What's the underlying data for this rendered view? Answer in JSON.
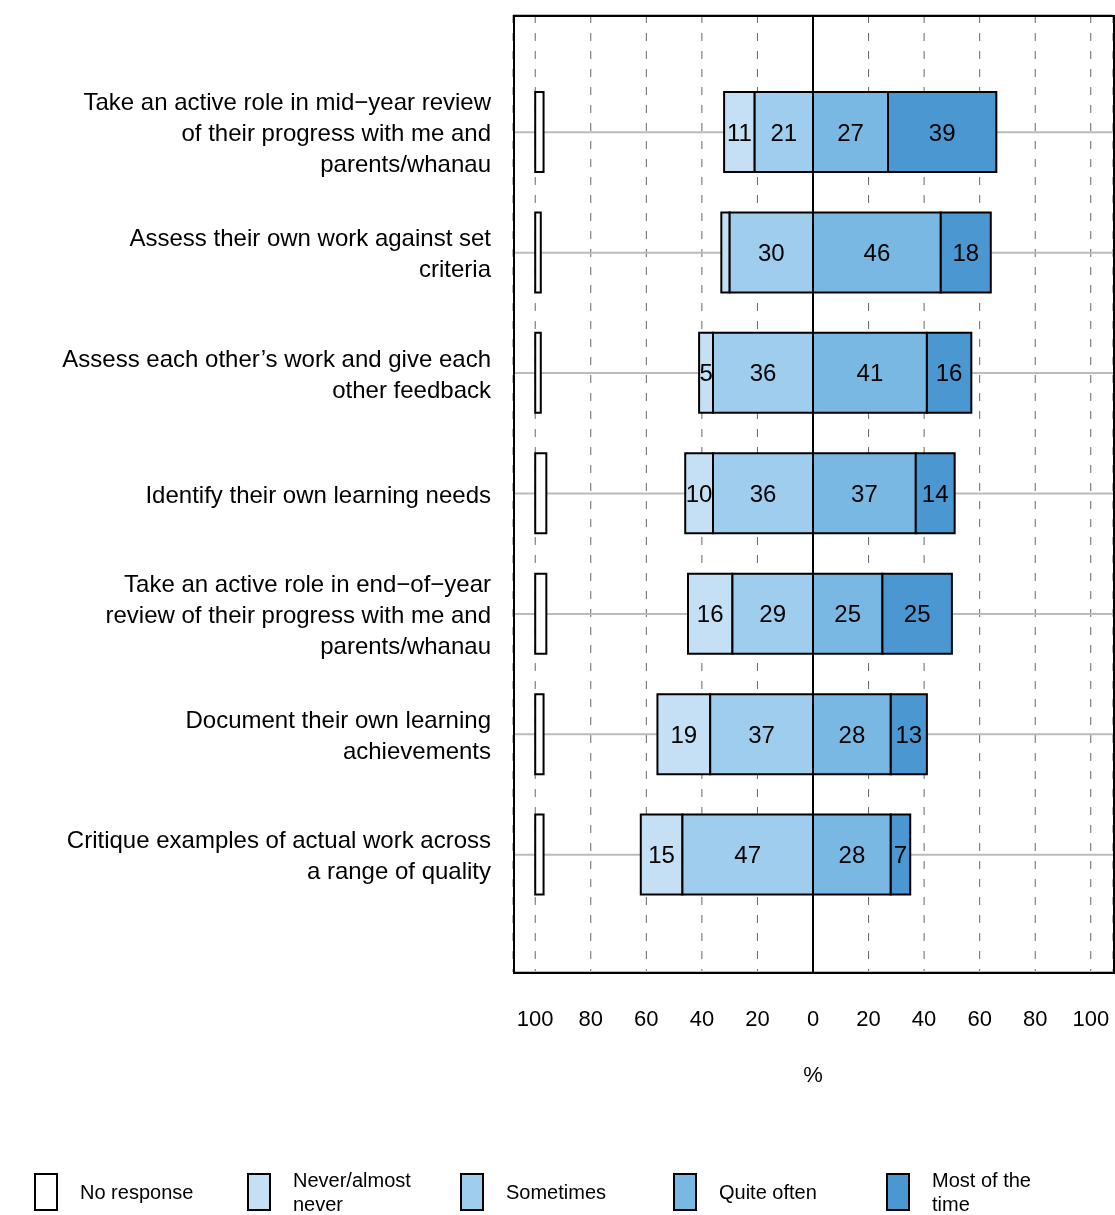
{
  "chart_data": {
    "type": "bar",
    "orientation": "horizontal",
    "xlabel": "%",
    "categories": [
      "Take an active role in mid−year review of their progress with me and parents/whanau",
      "Assess their own work against set criteria",
      "Assess each other’s work and give each other feedback",
      "Identify their own learning needs",
      "Take an active role in end−of−year review of their progress with me and parents/whanau",
      "Document their own learning achievements",
      "Critique examples of actual work across a range of quality"
    ],
    "series": [
      {
        "name": "No response",
        "color": "#ffffff",
        "values": [
          3,
          2,
          2,
          4,
          4,
          3,
          3
        ],
        "base": [
          -100,
          -100,
          -100,
          -100,
          -100,
          -100,
          -100
        ]
      },
      {
        "name": "Never/almost never",
        "color": "#c5e0f4",
        "values": [
          11,
          3,
          5,
          10,
          16,
          19,
          15
        ],
        "base": [
          -32,
          -33,
          -41,
          -46,
          -45,
          -56,
          -62
        ],
        "value_labels": [
          "11",
          null,
          "5",
          "10",
          "16",
          "19",
          "15"
        ]
      },
      {
        "name": "Sometimes",
        "color": "#9ecdee",
        "values": [
          21,
          30,
          36,
          36,
          29,
          37,
          47
        ],
        "base": [
          -21,
          -30,
          -36,
          -36,
          -29,
          -37,
          -47
        ],
        "value_labels": [
          "21",
          "30",
          "36",
          "36",
          "29",
          "37",
          "47"
        ]
      },
      {
        "name": "Quite often",
        "color": "#7ab8e4",
        "values": [
          27,
          46,
          41,
          37,
          25,
          28,
          28
        ],
        "base": [
          0,
          0,
          0,
          0,
          0,
          0,
          0
        ],
        "value_labels": [
          "27",
          "46",
          "41",
          "37",
          "25",
          "28",
          "28"
        ]
      },
      {
        "name": "Most of the time",
        "color": "#4a97d1",
        "values": [
          39,
          18,
          16,
          14,
          25,
          13,
          7
        ],
        "base": [
          27,
          46,
          41,
          37,
          25,
          28,
          28
        ],
        "value_labels": [
          "39",
          "18",
          "16",
          "14",
          "25",
          "13",
          "7"
        ]
      }
    ],
    "xlim": [
      -108,
      108
    ],
    "xticks": [
      {
        "value": -100,
        "label": "100"
      },
      {
        "value": -80,
        "label": "80"
      },
      {
        "value": -60,
        "label": "60"
      },
      {
        "value": -40,
        "label": "40"
      },
      {
        "value": -20,
        "label": "20"
      },
      0,
      20,
      40,
      60,
      80,
      100
    ],
    "ref_lines": [
      {
        "axis": "x",
        "value": 0,
        "color": "#000000"
      }
    ],
    "grid": true,
    "legend": "bottom"
  }
}
